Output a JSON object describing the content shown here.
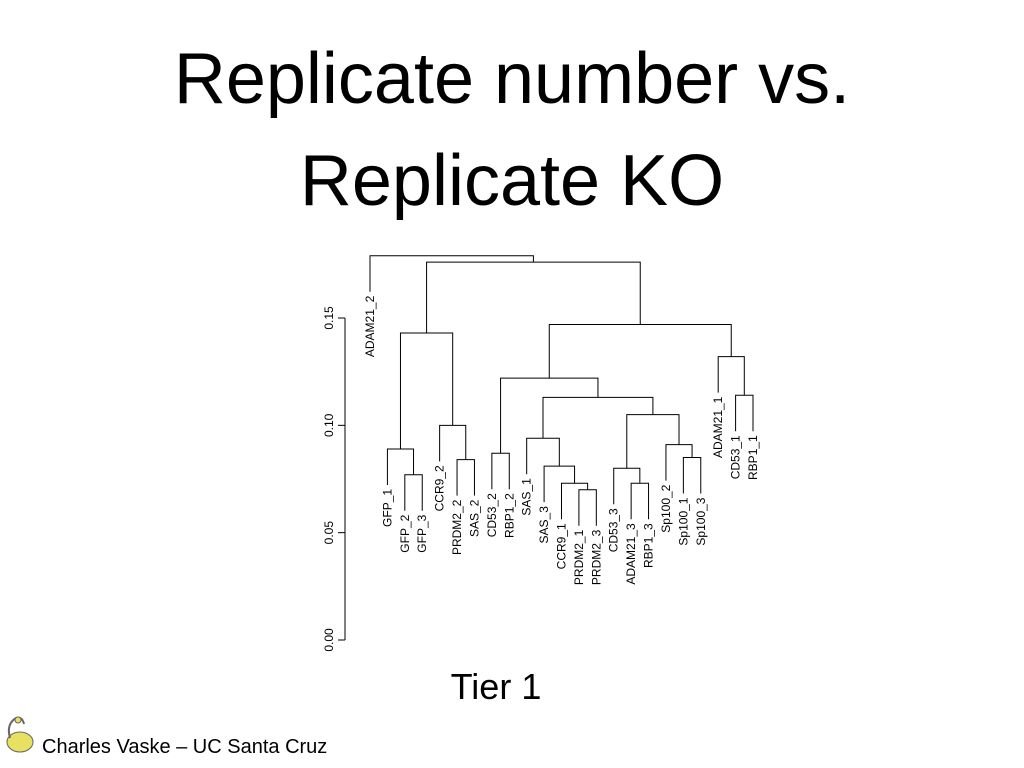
{
  "chart_data": {
    "type": "dendrogram",
    "title": "Replicate number vs. Replicate KO",
    "xlabel": "Tier 1",
    "footer": "Charles Vaske – UC Santa Cruz",
    "color": "#000000",
    "ylim": [
      0,
      0.15
    ],
    "yticks": [
      {
        "value": 0,
        "label": "0.00"
      },
      {
        "value": 0.05,
        "label": "0.05"
      },
      {
        "value": 0.1,
        "label": "0.10"
      },
      {
        "value": 0.15,
        "label": "0.15"
      }
    ],
    "tree": {
      "height": 0.179,
      "children": [
        "ADAM21_2",
        {
          "height": 0.176,
          "children": [
            {
              "height": 0.143,
              "children": [
                {
                  "height": 0.089,
                  "children": [
                    "GFP_1",
                    {
                      "height": 0.077,
                      "children": [
                        "GFP_2",
                        "GFP_3"
                      ]
                    }
                  ]
                },
                {
                  "height": 0.1,
                  "children": [
                    "CCR9_2",
                    {
                      "height": 0.084,
                      "children": [
                        "PRDM2_2",
                        "SAS_2"
                      ]
                    }
                  ]
                }
              ]
            },
            {
              "height": 0.147,
              "children": [
                {
                  "height": 0.122,
                  "children": [
                    {
                      "height": 0.087,
                      "children": [
                        "CD53_2",
                        "RBP1_2"
                      ]
                    },
                    {
                      "height": 0.113,
                      "children": [
                        {
                          "height": 0.094,
                          "children": [
                            "SAS_1",
                            {
                              "height": 0.081,
                              "children": [
                                "SAS_3",
                                {
                                  "height": 0.073,
                                  "children": [
                                    "CCR9_1",
                                    {
                                      "height": 0.07,
                                      "children": [
                                        "PRDM2_1",
                                        "PRDM2_3"
                                      ]
                                    }
                                  ]
                                }
                              ]
                            }
                          ]
                        },
                        {
                          "height": 0.105,
                          "children": [
                            {
                              "height": 0.08,
                              "children": [
                                "CD53_3",
                                {
                                  "height": 0.073,
                                  "children": [
                                    "ADAM21_3",
                                    "RBP1_3"
                                  ]
                                }
                              ]
                            },
                            {
                              "height": 0.091,
                              "children": [
                                "Sp100_2",
                                {
                                  "height": 0.085,
                                  "children": [
                                    "Sp100_1",
                                    "Sp100_3"
                                  ]
                                }
                              ]
                            }
                          ]
                        }
                      ]
                    }
                  ]
                },
                {
                  "height": 0.132,
                  "children": [
                    "ADAM21_1",
                    {
                      "height": 0.114,
                      "children": [
                        "CD53_1",
                        "RBP1_1"
                      ]
                    }
                  ]
                }
              ]
            }
          ]
        }
      ]
    }
  }
}
